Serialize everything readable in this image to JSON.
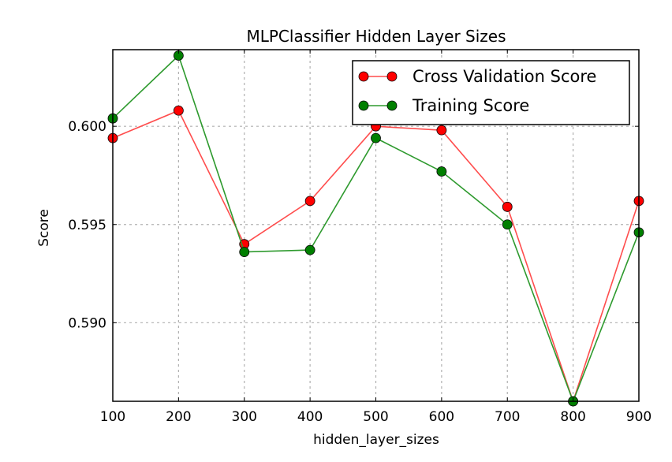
{
  "chart_data": {
    "type": "line",
    "title": "MLPClassifier Hidden Layer Sizes",
    "xlabel": "hidden_layer_sizes",
    "ylabel": "Score",
    "xlim": [
      100,
      900
    ],
    "ylim": [
      0.586,
      0.6039
    ],
    "x_ticks": [
      100,
      200,
      300,
      400,
      500,
      600,
      700,
      800,
      900
    ],
    "x_tick_labels": [
      "100",
      "200",
      "300",
      "400",
      "500",
      "600",
      "700",
      "800",
      "900"
    ],
    "y_ticks": [
      0.59,
      0.595,
      0.6
    ],
    "y_tick_labels": [
      "0.590",
      "0.595",
      "0.600"
    ],
    "grid": true,
    "legend_position": "top-right",
    "x": [
      100,
      200,
      300,
      400,
      500,
      600,
      700,
      800,
      900
    ],
    "series": [
      {
        "name": "Cross Validation Score",
        "color": "#ff0000",
        "line_color": "#ff4d4d",
        "values": [
          0.5994,
          0.6008,
          0.594,
          0.5962,
          0.6,
          0.5998,
          0.5959,
          0.586,
          0.5962
        ]
      },
      {
        "name": "Training Score",
        "color": "#007f00",
        "line_color": "#2e9a2e",
        "values": [
          0.6004,
          0.6036,
          0.5936,
          0.5937,
          0.5994,
          0.5977,
          0.595,
          0.586,
          0.5946
        ]
      }
    ]
  }
}
